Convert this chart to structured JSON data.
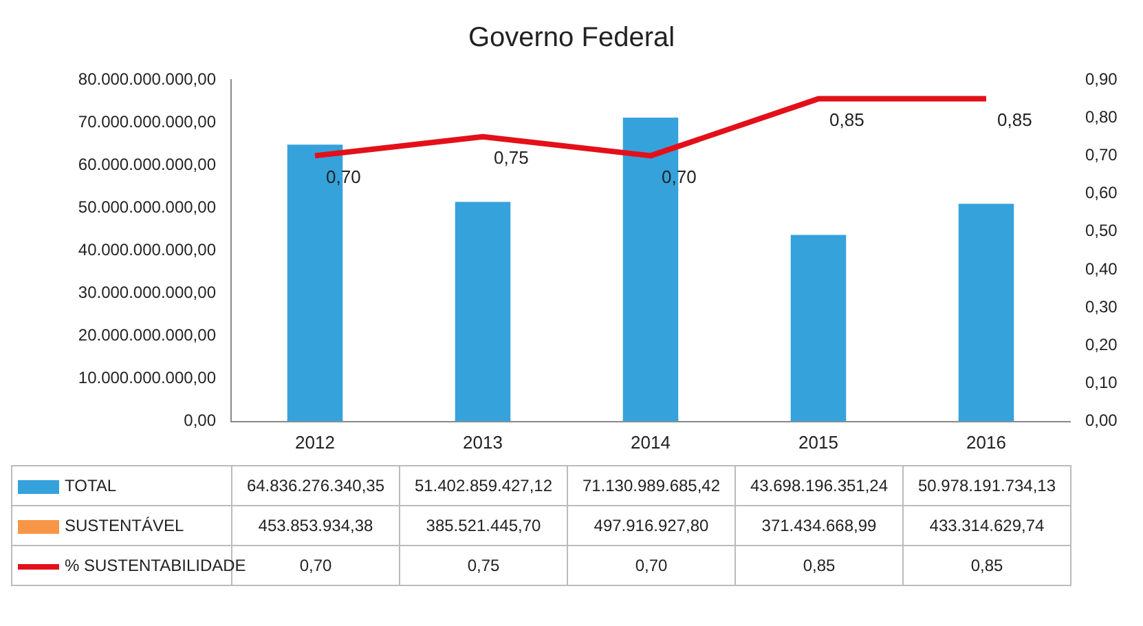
{
  "chart_data": {
    "type": "bar",
    "title": "Governo Federal",
    "categories": [
      "2012",
      "2013",
      "2014",
      "2015",
      "2016"
    ],
    "series": [
      {
        "name": "TOTAL",
        "color": "#35a2dc",
        "values": [
          64836276340.35,
          51402859427.12,
          71130989685.42,
          43698196351.24,
          50978191734.13
        ],
        "value_labels": [
          "64.836.276.340,35",
          "51.402.859.427,12",
          "71.130.989.685,42",
          "43.698.196.351,24",
          "50.978.191.734,13"
        ]
      },
      {
        "name": "SUSTENTÁVEL",
        "color": "#f79646",
        "values": [
          453853934.38,
          385521445.7,
          497916927.8,
          371434668.99,
          433314629.74
        ],
        "value_labels": [
          "453.853.934,38",
          "385.521.445,70",
          "497.916.927,80",
          "371.434.668,99",
          "433.314.629,74"
        ]
      },
      {
        "name": "% SUSTENTABILIDADE",
        "type": "line",
        "axis": "y2",
        "color": "#e3101a",
        "values": [
          0.7,
          0.75,
          0.7,
          0.85,
          0.85
        ],
        "value_labels": [
          "0,70",
          "0,75",
          "0,70",
          "0,85",
          "0,85"
        ]
      }
    ],
    "ylim": [
      0,
      80000000000
    ],
    "yticks": [
      {
        "value": 0,
        "label": "0,00"
      },
      {
        "value": 10000000000,
        "label": "10.000.000.000,00"
      },
      {
        "value": 20000000000,
        "label": "20.000.000.000,00"
      },
      {
        "value": 30000000000,
        "label": "30.000.000.000,00"
      },
      {
        "value": 40000000000,
        "label": "40.000.000.000,00"
      },
      {
        "value": 50000000000,
        "label": "50.000.000.000,00"
      },
      {
        "value": 60000000000,
        "label": "60.000.000.000,00"
      },
      {
        "value": 70000000000,
        "label": "70.000.000.000,00"
      },
      {
        "value": 80000000000,
        "label": "80.000.000.000,00"
      }
    ],
    "y2lim": [
      0,
      0.9
    ],
    "y2ticks": [
      {
        "value": 0,
        "label": "0,00"
      },
      {
        "value": 0.1,
        "label": "0,10"
      },
      {
        "value": 0.2,
        "label": "0,20"
      },
      {
        "value": 0.3,
        "label": "0,30"
      },
      {
        "value": 0.4,
        "label": "0,40"
      },
      {
        "value": 0.5,
        "label": "0,50"
      },
      {
        "value": 0.6,
        "label": "0,60"
      },
      {
        "value": 0.7,
        "label": "0,70"
      },
      {
        "value": 0.8,
        "label": "0,80"
      },
      {
        "value": 0.9,
        "label": "0,90"
      }
    ],
    "grid": false,
    "legend": "bottom",
    "marker": "none",
    "line_style": "solid"
  }
}
